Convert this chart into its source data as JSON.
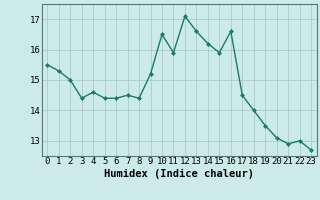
{
  "x": [
    0,
    1,
    2,
    3,
    4,
    5,
    6,
    7,
    8,
    9,
    10,
    11,
    12,
    13,
    14,
    15,
    16,
    17,
    18,
    19,
    20,
    21,
    22,
    23
  ],
  "y": [
    15.5,
    15.3,
    15.0,
    14.4,
    14.6,
    14.4,
    14.4,
    14.5,
    14.4,
    15.2,
    16.5,
    15.9,
    17.1,
    16.6,
    16.2,
    15.9,
    16.6,
    14.5,
    14.0,
    13.5,
    13.1,
    12.9,
    13.0,
    12.7
  ],
  "line_color": "#1a7a6e",
  "marker": "D",
  "marker_size": 2.0,
  "bg_color": "#cceaea",
  "grid_color": "#aacccc",
  "xlabel": "Humidex (Indice chaleur)",
  "ylim": [
    12.5,
    17.5
  ],
  "xlim": [
    -0.5,
    23.5
  ],
  "yticks": [
    13,
    14,
    15,
    16,
    17
  ],
  "xticks": [
    0,
    1,
    2,
    3,
    4,
    5,
    6,
    7,
    8,
    9,
    10,
    11,
    12,
    13,
    14,
    15,
    16,
    17,
    18,
    19,
    20,
    21,
    22,
    23
  ],
  "xlabel_fontsize": 7.5,
  "tick_fontsize": 6.5
}
